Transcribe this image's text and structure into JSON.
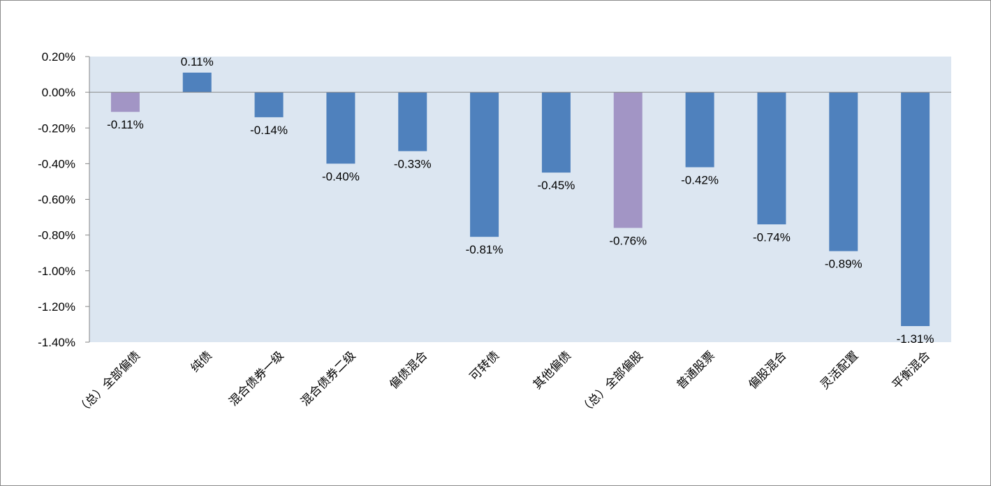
{
  "chart_data": {
    "type": "bar",
    "title": "",
    "xlabel": "",
    "ylabel": "",
    "ylim": [
      -1.4,
      0.2
    ],
    "y_tick_step": 0.2,
    "y_unit": "%",
    "grid": false,
    "legend": "none",
    "categories": [
      "（总）全部偏债",
      "纯债",
      "混合债券一级",
      "混合债券二级",
      "偏债混合",
      "可转债",
      "其他偏债",
      "（总）全部偏股",
      "普通股票",
      "偏股混合",
      "灵活配置",
      "平衡混合"
    ],
    "values": [
      -0.11,
      0.11,
      -0.14,
      -0.4,
      -0.33,
      -0.81,
      -0.45,
      -0.76,
      -0.42,
      -0.74,
      -0.89,
      -1.31
    ],
    "value_labels": [
      "-0.11%",
      "0.11%",
      "-0.14%",
      "-0.40%",
      "-0.33%",
      "-0.81%",
      "-0.45%",
      "-0.76%",
      "-0.42%",
      "-0.74%",
      "-0.89%",
      "-1.31%"
    ],
    "y_tick_labels": [
      "0.20%",
      "0.00%",
      "-0.20%",
      "-0.40%",
      "-0.60%",
      "-0.80%",
      "-1.00%",
      "-1.20%",
      "-1.40%"
    ],
    "bar_colors": [
      "#a295c5",
      "#4f81bd",
      "#4f81bd",
      "#4f81bd",
      "#4f81bd",
      "#4f81bd",
      "#4f81bd",
      "#a295c5",
      "#4f81bd",
      "#4f81bd",
      "#4f81bd",
      "#4f81bd"
    ],
    "plot_background": "#dce6f1",
    "axis_color": "#868686"
  }
}
